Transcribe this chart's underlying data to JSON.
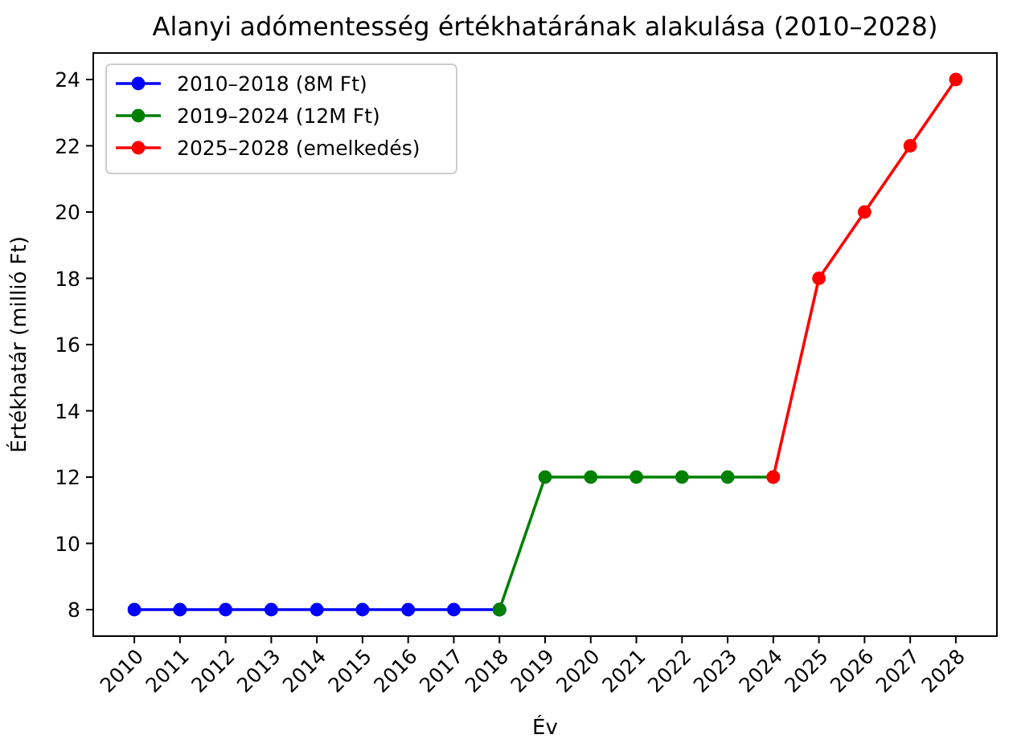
{
  "chart_data": {
    "type": "line",
    "title": "Alanyi adómentesség értékhatárának alakulása (2010–2028)",
    "xlabel": "Év",
    "ylabel": "Értékhatár (millió Ft)",
    "series": [
      {
        "name": "2010–2018 (8M Ft)",
        "color": "#0000ff",
        "x": [
          2010,
          2011,
          2012,
          2013,
          2014,
          2015,
          2016,
          2017,
          2018
        ],
        "values": [
          8,
          8,
          8,
          8,
          8,
          8,
          8,
          8,
          8
        ]
      },
      {
        "name": "2019–2024 (12M Ft)",
        "color": "#008000",
        "x": [
          2018,
          2019,
          2020,
          2021,
          2022,
          2023,
          2024
        ],
        "values": [
          8,
          12,
          12,
          12,
          12,
          12,
          12
        ]
      },
      {
        "name": "2025–2028 (emelkedés)",
        "color": "#ff0000",
        "x": [
          2024,
          2025,
          2026,
          2027,
          2028
        ],
        "values": [
          12,
          18,
          20,
          22,
          24
        ]
      }
    ],
    "xlim": [
      2009.1,
      2028.9
    ],
    "xticks": [
      2010,
      2011,
      2012,
      2013,
      2014,
      2015,
      2016,
      2017,
      2018,
      2019,
      2020,
      2021,
      2022,
      2023,
      2024,
      2025,
      2026,
      2027,
      2028
    ],
    "ylim": [
      7.2,
      24.8
    ],
    "yticks": [
      8,
      10,
      12,
      14,
      16,
      18,
      20,
      22,
      24
    ],
    "marker": "circle",
    "line_style": "solid",
    "legend": "top left",
    "grid": false
  }
}
